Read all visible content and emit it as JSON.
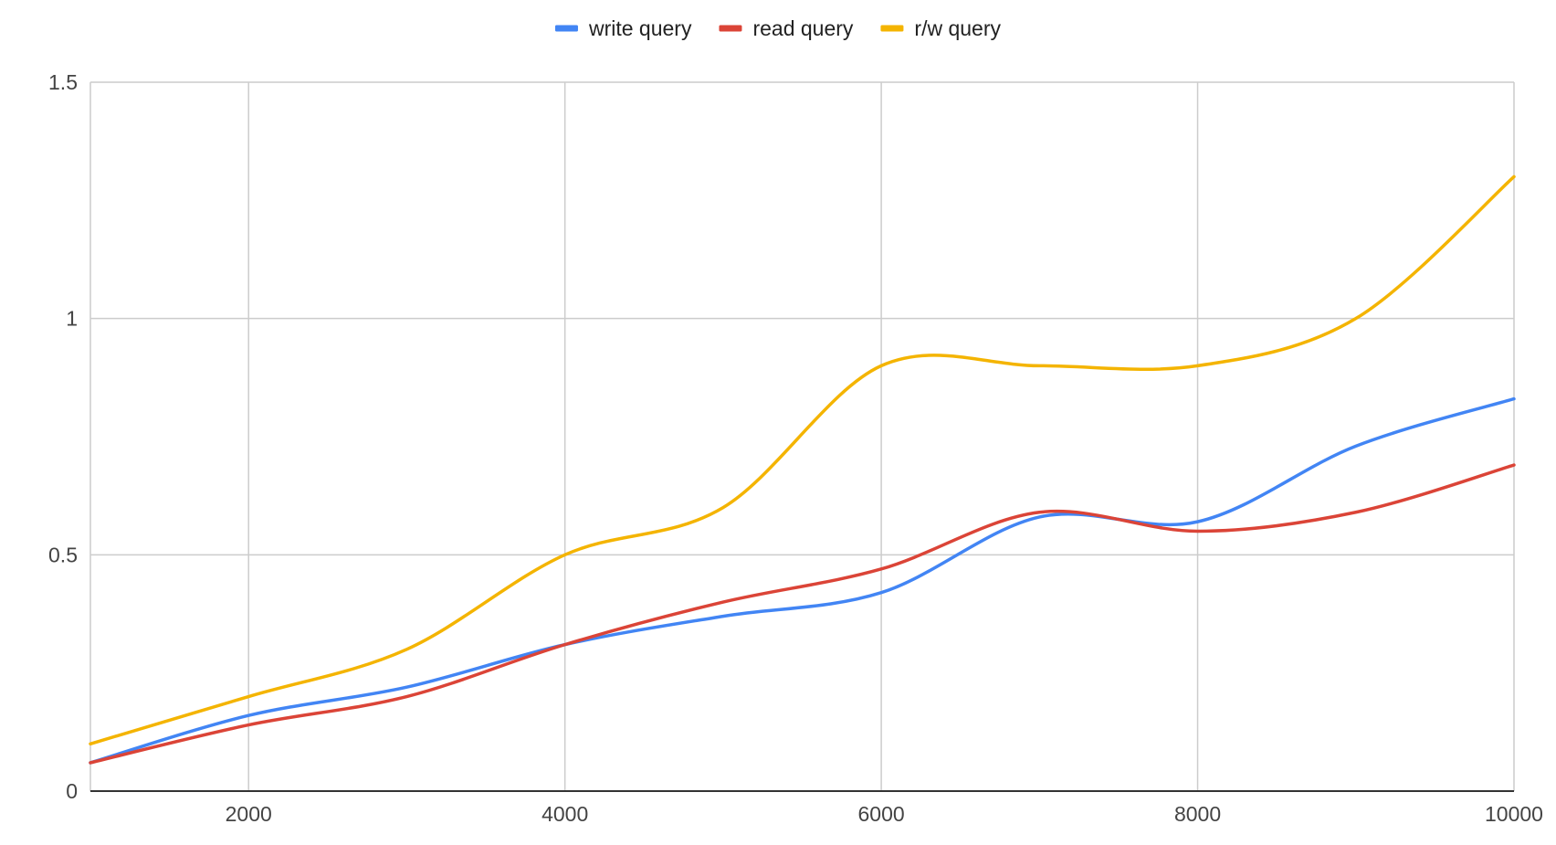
{
  "chart_data": {
    "type": "line",
    "x": [
      1000,
      2000,
      3000,
      4000,
      5000,
      6000,
      7000,
      8000,
      9000,
      10000
    ],
    "xlim": [
      1000,
      10000
    ],
    "ylim": [
      0,
      1.5
    ],
    "x_ticks": [
      2000,
      4000,
      6000,
      8000,
      10000
    ],
    "x_tick_labels": [
      "2000",
      "4000",
      "6000",
      "8000",
      "10000"
    ],
    "y_ticks": [
      0,
      0.5,
      1,
      1.5
    ],
    "y_tick_labels": [
      "0",
      "0.5",
      "1",
      "1.5"
    ],
    "grid": true,
    "legend_position": "top",
    "smooth": true,
    "series": [
      {
        "name": "write query",
        "color": "#4285F4",
        "values": [
          0.06,
          0.16,
          0.22,
          0.31,
          0.37,
          0.42,
          0.58,
          0.57,
          0.73,
          0.83
        ]
      },
      {
        "name": "read query",
        "color": "#DB4437",
        "values": [
          0.06,
          0.14,
          0.2,
          0.31,
          0.4,
          0.47,
          0.59,
          0.55,
          0.59,
          0.69
        ]
      },
      {
        "name": "r/w query",
        "color": "#F4B400",
        "values": [
          0.1,
          0.2,
          0.3,
          0.5,
          0.6,
          0.9,
          0.9,
          0.9,
          1.0,
          1.3
        ]
      }
    ]
  }
}
